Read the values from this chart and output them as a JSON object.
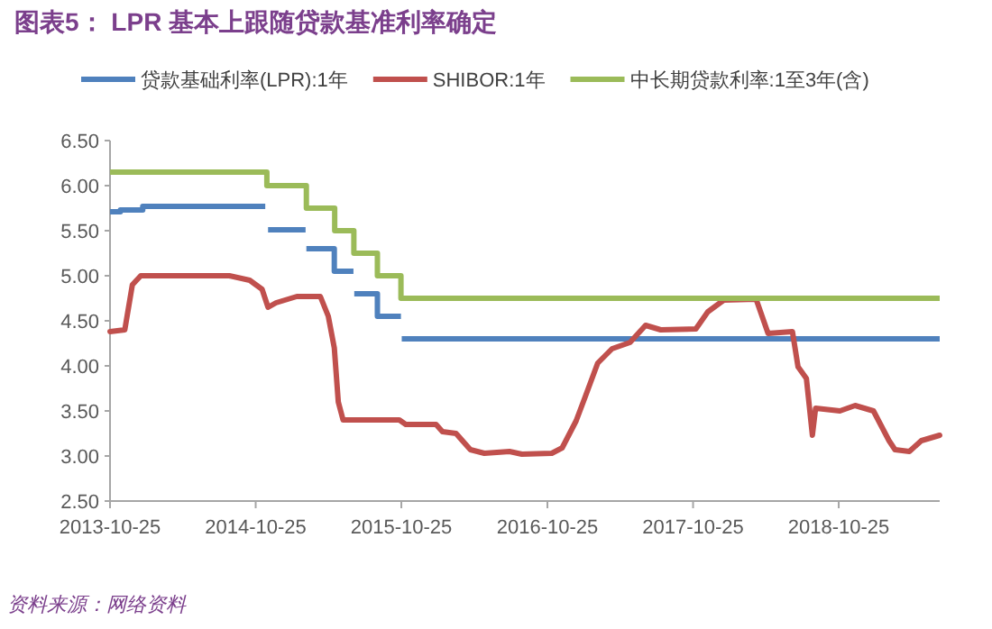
{
  "chart_data": {
    "type": "line",
    "title": "图表5： LPR 基本上跟随贷款基准利率确定",
    "annotations": [
      "资料来源：网络资料"
    ],
    "legend": "top",
    "xlim": [
      "2013-10-25",
      "2019-07-05"
    ],
    "xticks": [
      "2013-10-25",
      "2014-10-25",
      "2015-10-25",
      "2016-10-25",
      "2017-10-25",
      "2018-10-25"
    ],
    "ylim": [
      2.5,
      6.5
    ],
    "yticks": [
      {
        "value": 2.5,
        "label": "2.50"
      },
      {
        "value": 3,
        "label": "3.00"
      },
      {
        "value": 3.5,
        "label": "3.50"
      },
      {
        "value": 4,
        "label": "4.00"
      },
      {
        "value": 4.5,
        "label": "4.50"
      },
      {
        "value": 5,
        "label": "5.00"
      },
      {
        "value": 5.5,
        "label": "5.50"
      },
      {
        "value": 6,
        "label": "6.00"
      },
      {
        "value": 6.5,
        "label": "6.50"
      }
    ],
    "series": [
      {
        "name": "贷款基础利率(LPR):1年",
        "color": "#4f81bd",
        "type": "step",
        "x": [
          "2013-10-25",
          "2013-11-20",
          "2014-01-15",
          "2014-11-18",
          "2014-11-19",
          "2014-11-25",
          "2015-02-27",
          "2015-02-28",
          "2015-03-01",
          "2015-05-10",
          "2015-06-27",
          "2015-06-28",
          "2015-06-29",
          "2015-08-26",
          "2015-10-24",
          "2015-10-25",
          "2015-10-26",
          "2019-07-05"
        ],
        "values": [
          5.71,
          5.73,
          5.77,
          5.77,
          null,
          5.51,
          5.51,
          null,
          5.3,
          5.05,
          5.05,
          null,
          4.8,
          4.55,
          4.55,
          null,
          4.3,
          4.3
        ]
      },
      {
        "name": "SHIBOR:1年",
        "color": "#c0504d",
        "type": "line",
        "x": [
          "2013-10-25",
          "2013-12-01",
          "2013-12-20",
          "2014-01-10",
          "2014-08-20",
          "2014-10-10",
          "2014-11-10",
          "2014-11-25",
          "2014-12-15",
          "2015-02-05",
          "2015-04-05",
          "2015-04-25",
          "2015-05-10",
          "2015-05-20",
          "2015-06-01",
          "2015-08-25",
          "2015-10-20",
          "2015-11-05",
          "2016-01-20",
          "2016-02-05",
          "2016-03-10",
          "2016-04-15",
          "2016-05-20",
          "2016-07-22",
          "2016-08-22",
          "2016-11-05",
          "2016-12-01",
          "2017-01-05",
          "2017-01-28",
          "2017-02-28",
          "2017-04-05",
          "2017-05-20",
          "2017-06-28",
          "2017-08-05",
          "2017-11-01",
          "2017-12-01",
          "2018-01-10",
          "2018-04-01",
          "2018-05-01",
          "2018-07-01",
          "2018-07-15",
          "2018-08-05",
          "2018-08-20",
          "2018-08-28",
          "2018-10-28",
          "2018-12-05",
          "2019-01-20",
          "2019-02-28",
          "2019-03-15",
          "2019-04-20",
          "2019-05-20",
          "2019-07-05"
        ],
        "values": [
          4.38,
          4.4,
          4.9,
          5.0,
          5.0,
          4.95,
          4.85,
          4.65,
          4.7,
          4.77,
          4.77,
          4.55,
          4.2,
          3.6,
          3.4,
          3.4,
          3.4,
          3.35,
          3.35,
          3.27,
          3.25,
          3.07,
          3.03,
          3.05,
          3.02,
          3.03,
          3.09,
          3.39,
          3.66,
          4.03,
          4.19,
          4.26,
          4.45,
          4.4,
          4.41,
          4.6,
          4.73,
          4.74,
          4.36,
          4.38,
          3.99,
          3.86,
          3.23,
          3.53,
          3.5,
          3.56,
          3.5,
          3.17,
          3.07,
          3.05,
          3.17,
          3.23
        ]
      },
      {
        "name": "中长期贷款利率:1至3年(含)",
        "color": "#9bbb59",
        "type": "step",
        "x": [
          "2013-10-25",
          "2014-11-22",
          "2015-03-01",
          "2015-05-11",
          "2015-06-28",
          "2015-08-26",
          "2015-10-24",
          "2019-07-05"
        ],
        "values": [
          6.15,
          6.0,
          5.75,
          5.5,
          5.25,
          5.0,
          4.75,
          4.75
        ]
      }
    ]
  }
}
